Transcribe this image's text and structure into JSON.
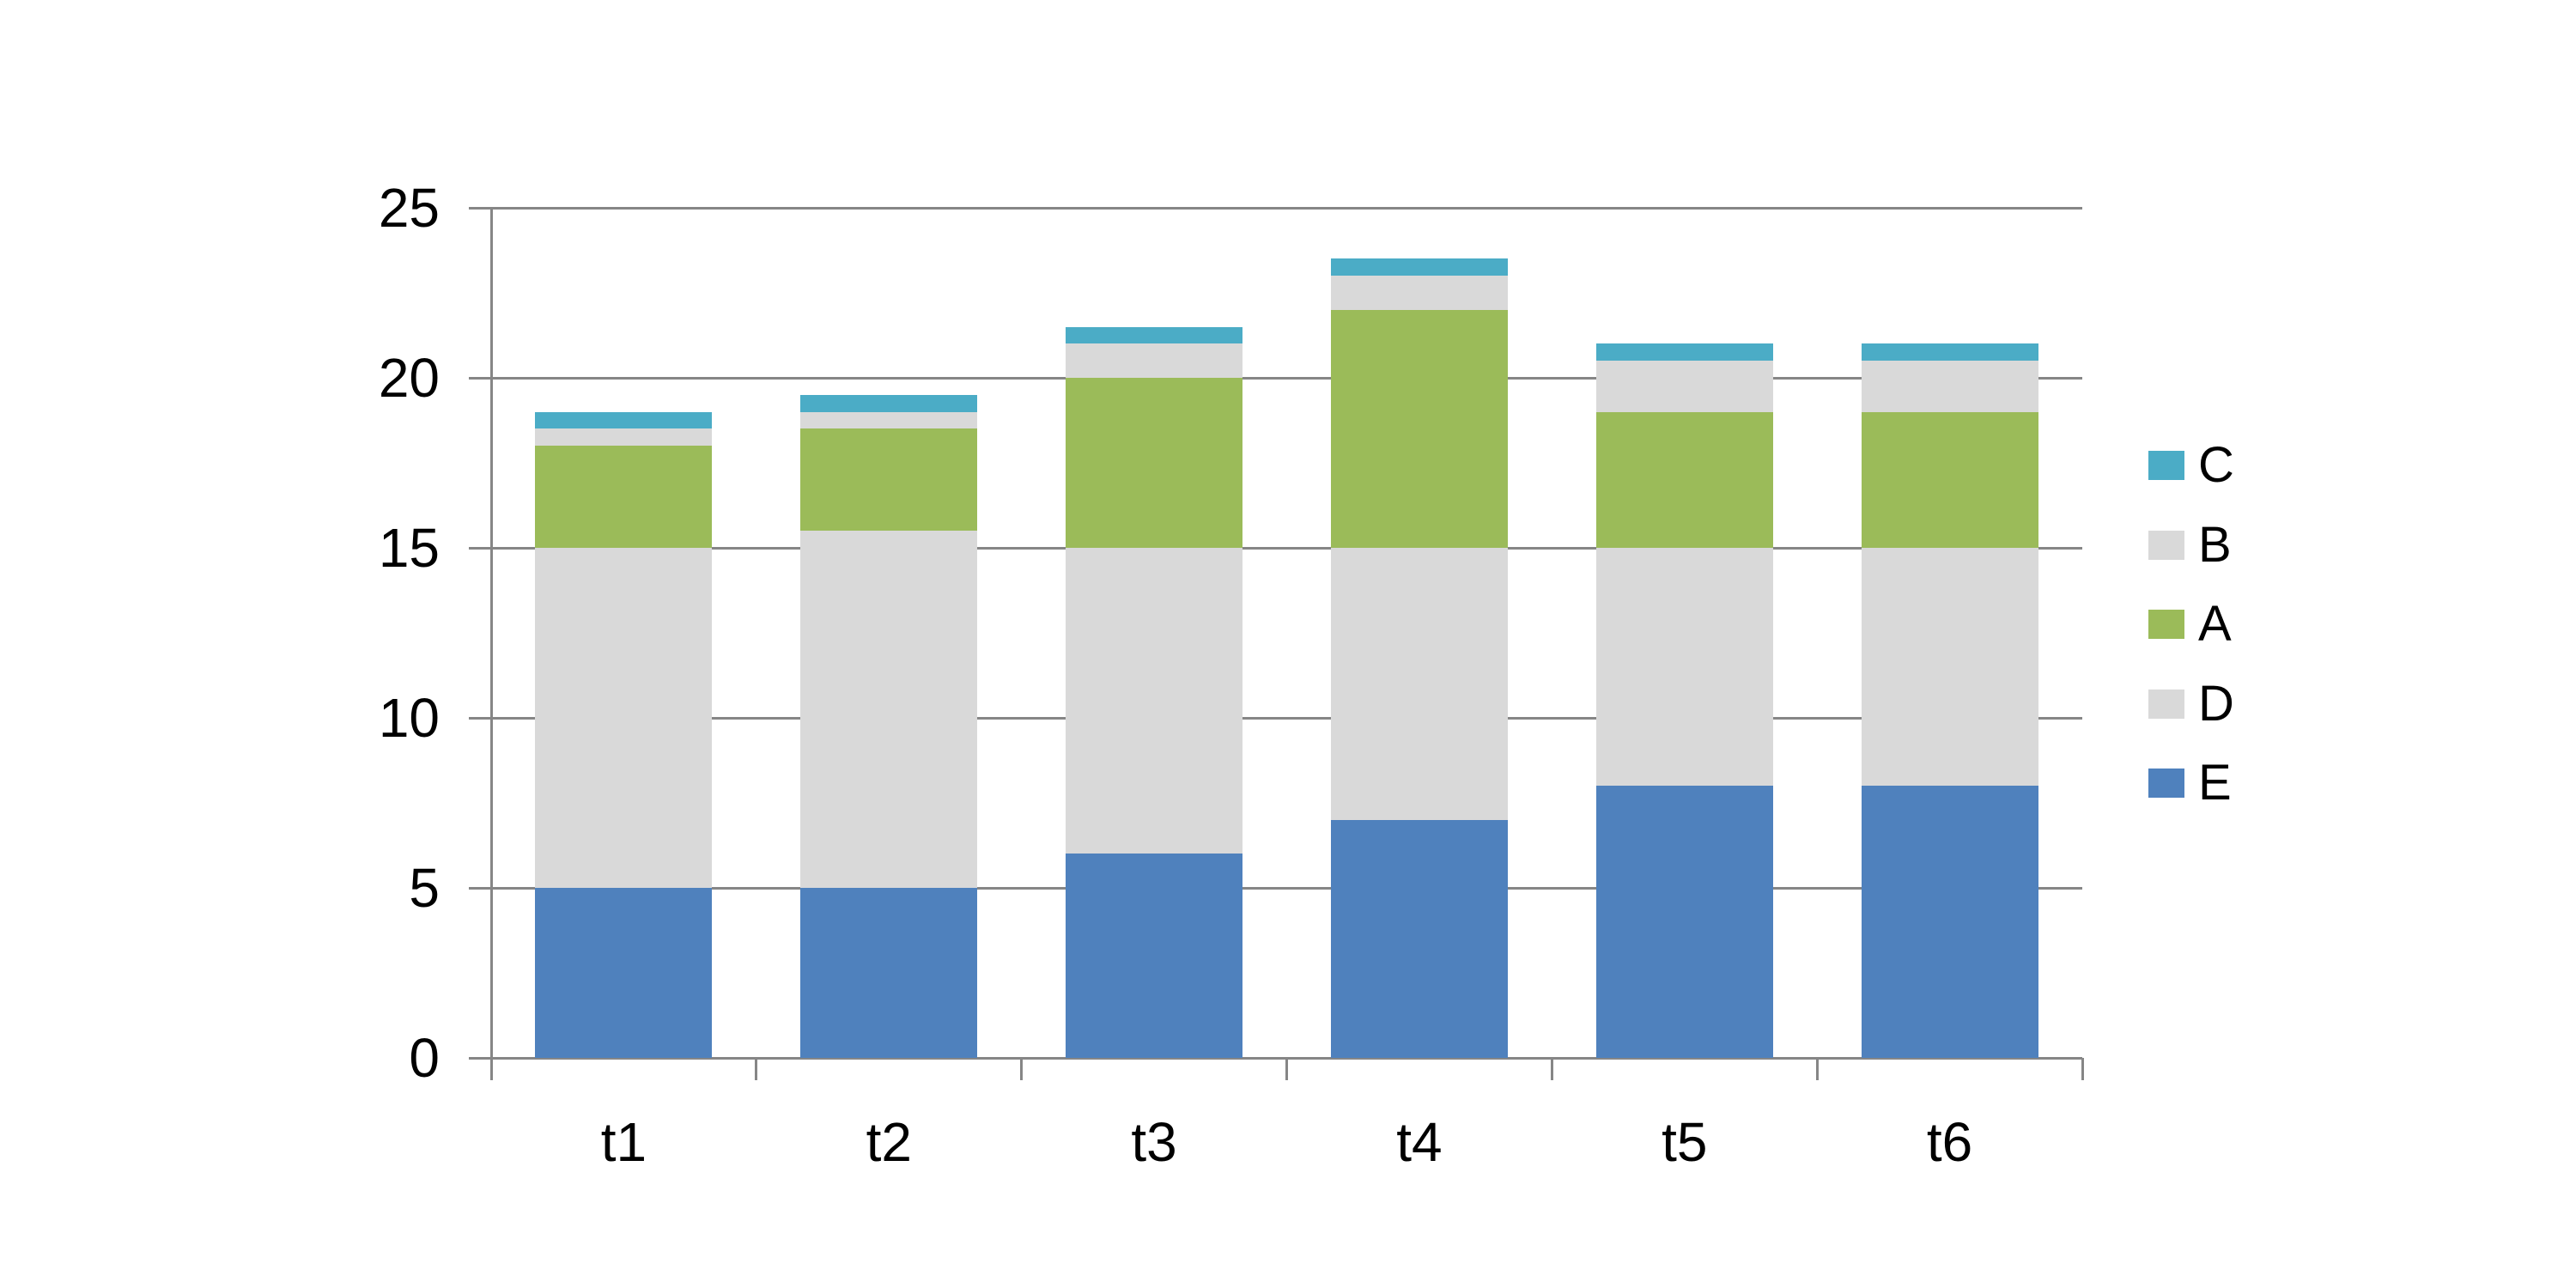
{
  "chart_data": {
    "type": "bar",
    "stacked": true,
    "title": "",
    "xlabel": "",
    "ylabel": "",
    "categories": [
      "t1",
      "t2",
      "t3",
      "t4",
      "t5",
      "t6"
    ],
    "series": [
      {
        "name": "E",
        "color": "#4F81BD",
        "values": [
          5,
          5,
          6,
          7,
          8,
          8
        ]
      },
      {
        "name": "D",
        "color": "#D9D9D9",
        "values": [
          10,
          10.5,
          9,
          8,
          7,
          7
        ]
      },
      {
        "name": "A",
        "color": "#9BBB59",
        "values": [
          3,
          3,
          5,
          7,
          4,
          4
        ]
      },
      {
        "name": "B",
        "color": "#D9D9D9",
        "values": [
          0.5,
          0.5,
          1,
          1,
          1.5,
          1.5
        ]
      },
      {
        "name": "C",
        "color": "#4BACC6",
        "values": [
          0.5,
          0.5,
          0.5,
          0.5,
          0.5,
          0.5
        ]
      }
    ],
    "stack_totals": [
      19,
      19.5,
      21.5,
      23.5,
      21,
      21
    ],
    "ylim": [
      0,
      25
    ],
    "yticks": [
      0,
      5,
      10,
      15,
      20,
      25
    ],
    "grid": true,
    "legend": {
      "position": "right",
      "order": [
        "C",
        "B",
        "A",
        "D",
        "E"
      ]
    }
  },
  "colors": {
    "background": "#FFFFFF",
    "gridline": "#868686",
    "axis": "#868686",
    "text": "#000000"
  }
}
